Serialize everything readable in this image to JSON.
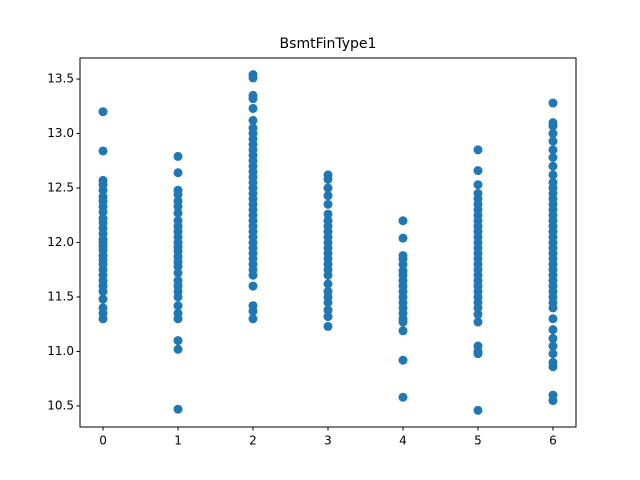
{
  "chart_data": {
    "type": "scatter",
    "title": "BsmtFinType1",
    "color": "#1f77b4",
    "xlim": [
      -0.307,
      6.307
    ],
    "xticks": [
      0,
      1,
      2,
      3,
      4,
      5,
      6
    ],
    "ylim": [
      10.307,
      13.693
    ],
    "yticks": [
      10.5,
      {
        "value": 11,
        "label": "11.0"
      },
      11.5,
      {
        "value": 12,
        "label": "12.0"
      },
      12.5,
      {
        "value": 13,
        "label": "13.0"
      },
      13.5
    ],
    "series": [
      {
        "x": [
          0,
          0,
          0,
          0,
          0,
          0,
          0,
          0,
          0,
          0,
          0,
          0,
          0,
          0,
          0,
          0,
          0,
          0,
          0,
          0,
          0,
          0,
          0,
          0,
          0,
          0,
          0,
          0,
          0
        ],
        "values": [
          13.2,
          12.84,
          12.57,
          12.53,
          12.48,
          12.42,
          12.38,
          12.33,
          12.28,
          12.22,
          12.18,
          12.13,
          12.08,
          12.03,
          12.0,
          11.97,
          11.93,
          11.88,
          11.84,
          11.8,
          11.75,
          11.7,
          11.65,
          11.6,
          11.55,
          11.48,
          11.4,
          11.35,
          11.3
        ]
      },
      {
        "x": [
          1,
          1,
          1,
          1,
          1,
          1,
          1,
          1,
          1,
          1,
          1,
          1,
          1,
          1,
          1,
          1,
          1,
          1,
          1,
          1,
          1,
          1,
          1,
          1,
          1,
          1,
          1,
          1
        ],
        "values": [
          12.79,
          12.64,
          12.48,
          12.44,
          12.38,
          12.33,
          12.27,
          12.2,
          12.15,
          12.1,
          12.05,
          12.0,
          11.96,
          11.92,
          11.87,
          11.82,
          11.78,
          11.72,
          11.65,
          11.6,
          11.55,
          11.5,
          11.42,
          11.35,
          11.3,
          11.1,
          11.02,
          10.47
        ]
      },
      {
        "x": [
          2,
          2,
          2,
          2,
          2,
          2,
          2,
          2,
          2,
          2,
          2,
          2,
          2,
          2,
          2,
          2,
          2,
          2,
          2,
          2,
          2,
          2,
          2,
          2,
          2,
          2,
          2,
          2,
          2,
          2,
          2,
          2,
          2,
          2,
          2,
          2,
          2,
          2
        ],
        "values": [
          13.54,
          13.51,
          13.35,
          13.32,
          13.23,
          13.12,
          13.05,
          13.0,
          12.95,
          12.9,
          12.85,
          12.8,
          12.75,
          12.7,
          12.65,
          12.6,
          12.55,
          12.5,
          12.45,
          12.4,
          12.35,
          12.3,
          12.25,
          12.2,
          12.15,
          12.1,
          12.05,
          12.0,
          11.95,
          11.9,
          11.85,
          11.8,
          11.75,
          11.7,
          11.6,
          11.42,
          11.37,
          11.3
        ]
      },
      {
        "x": [
          3,
          3,
          3,
          3,
          3,
          3,
          3,
          3,
          3,
          3,
          3,
          3,
          3,
          3,
          3,
          3,
          3,
          3,
          3,
          3,
          3,
          3,
          3,
          3
        ],
        "values": [
          12.62,
          12.58,
          12.5,
          12.43,
          12.35,
          12.26,
          12.2,
          12.15,
          12.1,
          12.05,
          12.0,
          11.95,
          11.9,
          11.85,
          11.8,
          11.75,
          11.7,
          11.62,
          11.55,
          11.5,
          11.45,
          11.38,
          11.32,
          11.23
        ]
      },
      {
        "x": [
          4,
          4,
          4,
          4,
          4,
          4,
          4,
          4,
          4,
          4,
          4,
          4,
          4,
          4,
          4,
          4,
          4,
          4,
          4
        ],
        "values": [
          12.2,
          12.04,
          11.88,
          11.85,
          11.8,
          11.74,
          11.7,
          11.65,
          11.6,
          11.55,
          11.5,
          11.45,
          11.4,
          11.35,
          11.3,
          11.27,
          11.19,
          10.92,
          10.58
        ]
      },
      {
        "x": [
          5,
          5,
          5,
          5,
          5,
          5,
          5,
          5,
          5,
          5,
          5,
          5,
          5,
          5,
          5,
          5,
          5,
          5,
          5,
          5,
          5,
          5,
          5,
          5,
          5,
          5,
          5,
          5,
          5,
          5,
          5
        ],
        "values": [
          12.85,
          12.66,
          12.53,
          12.45,
          12.4,
          12.35,
          12.3,
          12.25,
          12.2,
          12.15,
          12.1,
          12.05,
          12.0,
          11.95,
          11.9,
          11.85,
          11.8,
          11.75,
          11.7,
          11.65,
          11.6,
          11.55,
          11.5,
          11.45,
          11.4,
          11.34,
          11.27,
          11.05,
          11.0,
          10.98,
          10.46
        ]
      },
      {
        "x": [
          6,
          6,
          6,
          6,
          6,
          6,
          6,
          6,
          6,
          6,
          6,
          6,
          6,
          6,
          6,
          6,
          6,
          6,
          6,
          6,
          6,
          6,
          6,
          6,
          6,
          6,
          6,
          6,
          6,
          6,
          6,
          6,
          6,
          6,
          6,
          6,
          6,
          6,
          6,
          6,
          6,
          6
        ],
        "values": [
          13.28,
          13.1,
          13.07,
          13.0,
          12.93,
          12.85,
          12.78,
          12.7,
          12.62,
          12.55,
          12.5,
          12.45,
          12.4,
          12.35,
          12.3,
          12.25,
          12.2,
          12.15,
          12.1,
          12.05,
          12.0,
          11.95,
          11.9,
          11.85,
          11.8,
          11.75,
          11.7,
          11.65,
          11.6,
          11.55,
          11.5,
          11.45,
          11.4,
          11.3,
          11.2,
          11.12,
          11.05,
          10.98,
          10.9,
          10.86,
          10.6,
          10.55
        ]
      }
    ]
  }
}
